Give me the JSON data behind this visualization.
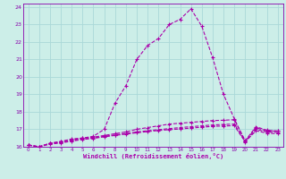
{
  "xlabel": "Windchill (Refroidissement éolien,°C)",
  "bg_color": "#cceee8",
  "grid_color": "#aad8d8",
  "line_color": "#aa00aa",
  "spine_color": "#8800aa",
  "xlim": [
    -0.5,
    23.5
  ],
  "ylim": [
    16,
    24.2
  ],
  "yticks": [
    16,
    17,
    18,
    19,
    20,
    21,
    22,
    23,
    24
  ],
  "xticks": [
    0,
    1,
    2,
    3,
    4,
    5,
    6,
    7,
    8,
    9,
    10,
    11,
    12,
    13,
    14,
    15,
    16,
    17,
    18,
    19,
    20,
    21,
    22,
    23
  ],
  "series1_x": [
    0,
    1,
    2,
    3,
    4,
    5,
    6,
    7,
    8,
    9,
    10,
    11,
    12,
    13,
    14,
    15,
    16,
    17,
    18,
    19,
    20,
    21,
    22,
    23
  ],
  "series1_y": [
    16.1,
    16.0,
    16.2,
    16.3,
    16.45,
    16.5,
    16.6,
    17.0,
    18.5,
    19.5,
    21.0,
    21.8,
    22.2,
    23.0,
    23.3,
    23.9,
    22.9,
    21.1,
    19.0,
    17.6,
    16.3,
    17.1,
    16.9,
    16.9
  ],
  "series2_x": [
    0,
    1,
    2,
    3,
    4,
    5,
    6,
    7,
    8,
    9,
    10,
    11,
    12,
    13,
    14,
    15,
    16,
    17,
    18,
    19,
    20,
    21,
    22,
    23
  ],
  "series2_y": [
    16.1,
    16.0,
    16.2,
    16.3,
    16.4,
    16.5,
    16.55,
    16.65,
    16.75,
    16.85,
    17.0,
    17.1,
    17.2,
    17.3,
    17.35,
    17.4,
    17.45,
    17.5,
    17.52,
    17.55,
    16.35,
    17.15,
    16.95,
    16.9
  ],
  "series3_x": [
    0,
    1,
    2,
    3,
    4,
    5,
    6,
    7,
    8,
    9,
    10,
    11,
    12,
    13,
    14,
    15,
    16,
    17,
    18,
    19,
    20,
    21,
    22,
    23
  ],
  "series3_y": [
    16.1,
    16.0,
    16.2,
    16.25,
    16.35,
    16.45,
    16.5,
    16.6,
    16.68,
    16.76,
    16.85,
    16.92,
    16.98,
    17.04,
    17.1,
    17.15,
    17.2,
    17.25,
    17.28,
    17.3,
    16.3,
    17.0,
    16.85,
    16.82
  ],
  "series4_x": [
    0,
    1,
    2,
    3,
    4,
    5,
    6,
    7,
    8,
    9,
    10,
    11,
    12,
    13,
    14,
    15,
    16,
    17,
    18,
    19,
    20,
    21,
    22,
    23
  ],
  "series4_y": [
    16.1,
    16.0,
    16.15,
    16.22,
    16.32,
    16.42,
    16.48,
    16.57,
    16.65,
    16.73,
    16.8,
    16.87,
    16.93,
    16.98,
    17.02,
    17.07,
    17.12,
    17.17,
    17.19,
    17.21,
    16.28,
    16.92,
    16.78,
    16.75
  ]
}
